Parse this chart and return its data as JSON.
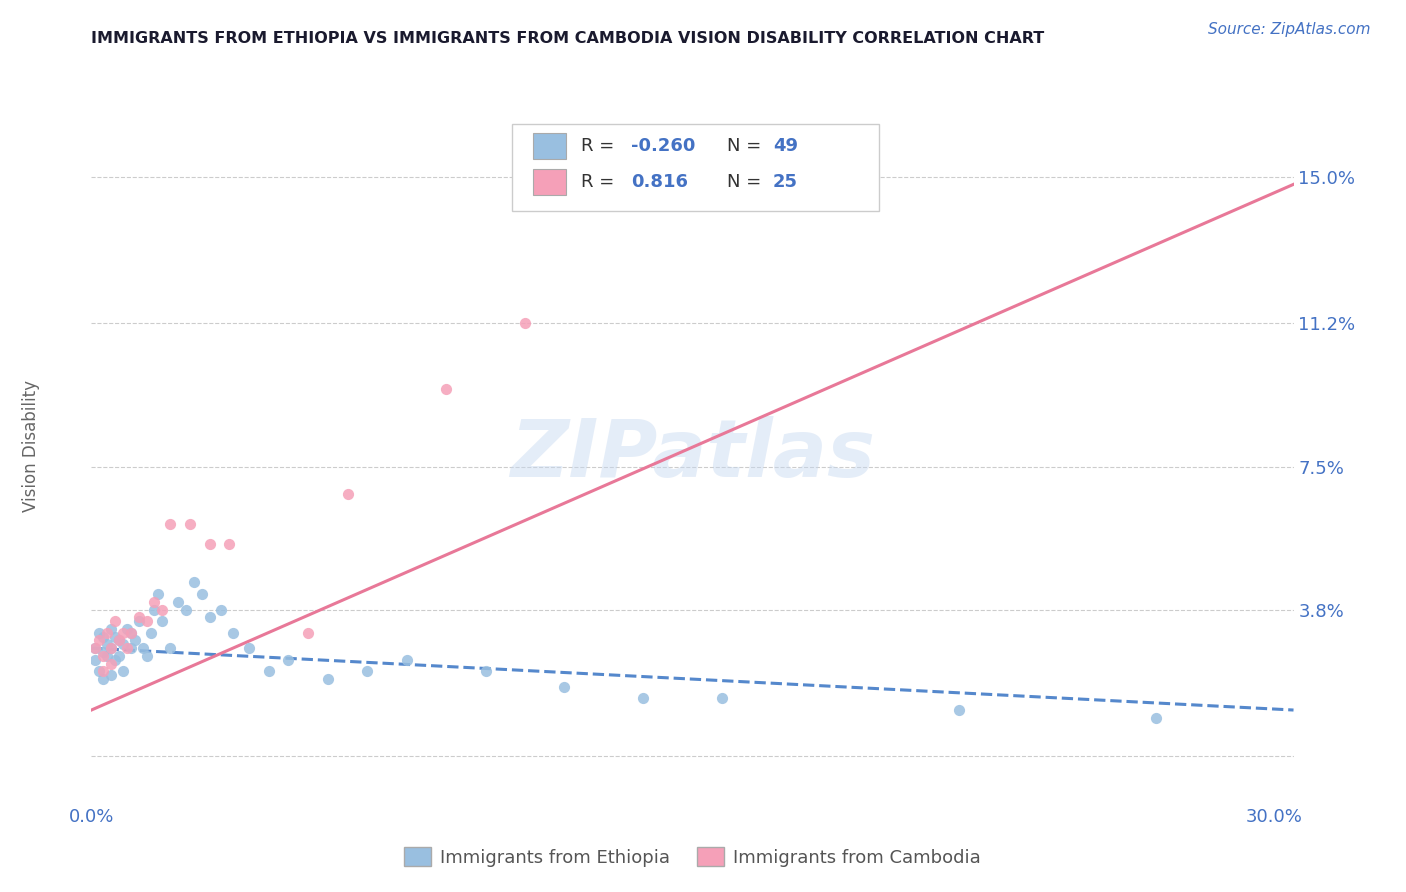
{
  "title": "IMMIGRANTS FROM ETHIOPIA VS IMMIGRANTS FROM CAMBODIA VISION DISABILITY CORRELATION CHART",
  "source": "Source: ZipAtlas.com",
  "ylabel": "Vision Disability",
  "xlim": [
    0.0,
    0.305
  ],
  "ylim": [
    -0.012,
    0.168
  ],
  "yticks": [
    0.0,
    0.038,
    0.075,
    0.112,
    0.15
  ],
  "ytick_labels": [
    "",
    "3.8%",
    "7.5%",
    "11.2%",
    "15.0%"
  ],
  "xtick_labels": [
    "0.0%",
    "30.0%"
  ],
  "watermark": "ZIPatlas",
  "color_ethiopia": "#99bfe0",
  "color_cambodia": "#f5a0b8",
  "color_line_ethiopia": "#5588cc",
  "color_line_cambodia": "#e87898",
  "color_title": "#1a1a2e",
  "color_blue": "#4472c4",
  "ethiopia_x": [
    0.001,
    0.001,
    0.002,
    0.002,
    0.003,
    0.003,
    0.003,
    0.004,
    0.004,
    0.005,
    0.005,
    0.005,
    0.006,
    0.006,
    0.007,
    0.007,
    0.008,
    0.008,
    0.009,
    0.01,
    0.01,
    0.011,
    0.012,
    0.013,
    0.014,
    0.015,
    0.016,
    0.017,
    0.018,
    0.02,
    0.022,
    0.024,
    0.026,
    0.028,
    0.03,
    0.033,
    0.036,
    0.04,
    0.045,
    0.05,
    0.06,
    0.07,
    0.08,
    0.1,
    0.12,
    0.14,
    0.16,
    0.22,
    0.27
  ],
  "ethiopia_y": [
    0.028,
    0.025,
    0.032,
    0.022,
    0.027,
    0.031,
    0.02,
    0.026,
    0.029,
    0.033,
    0.021,
    0.028,
    0.031,
    0.025,
    0.026,
    0.03,
    0.029,
    0.022,
    0.033,
    0.028,
    0.032,
    0.03,
    0.035,
    0.028,
    0.026,
    0.032,
    0.038,
    0.042,
    0.035,
    0.028,
    0.04,
    0.038,
    0.045,
    0.042,
    0.036,
    0.038,
    0.032,
    0.028,
    0.022,
    0.025,
    0.02,
    0.022,
    0.025,
    0.022,
    0.018,
    0.015,
    0.015,
    0.012,
    0.01
  ],
  "cambodia_x": [
    0.001,
    0.002,
    0.003,
    0.003,
    0.004,
    0.005,
    0.005,
    0.006,
    0.007,
    0.008,
    0.009,
    0.01,
    0.012,
    0.014,
    0.016,
    0.018,
    0.02,
    0.025,
    0.03,
    0.035,
    0.055,
    0.065,
    0.09,
    0.11,
    0.13
  ],
  "cambodia_y": [
    0.028,
    0.03,
    0.026,
    0.022,
    0.032,
    0.028,
    0.024,
    0.035,
    0.03,
    0.032,
    0.028,
    0.032,
    0.036,
    0.035,
    0.04,
    0.038,
    0.06,
    0.06,
    0.055,
    0.055,
    0.032,
    0.068,
    0.095,
    0.112,
    0.145
  ],
  "eth_line_x0": 0.0,
  "eth_line_x1": 0.305,
  "eth_line_y0": 0.028,
  "eth_line_y1": 0.012,
  "cam_line_x0": 0.0,
  "cam_line_x1": 0.305,
  "cam_line_y0": 0.012,
  "cam_line_y1": 0.148
}
